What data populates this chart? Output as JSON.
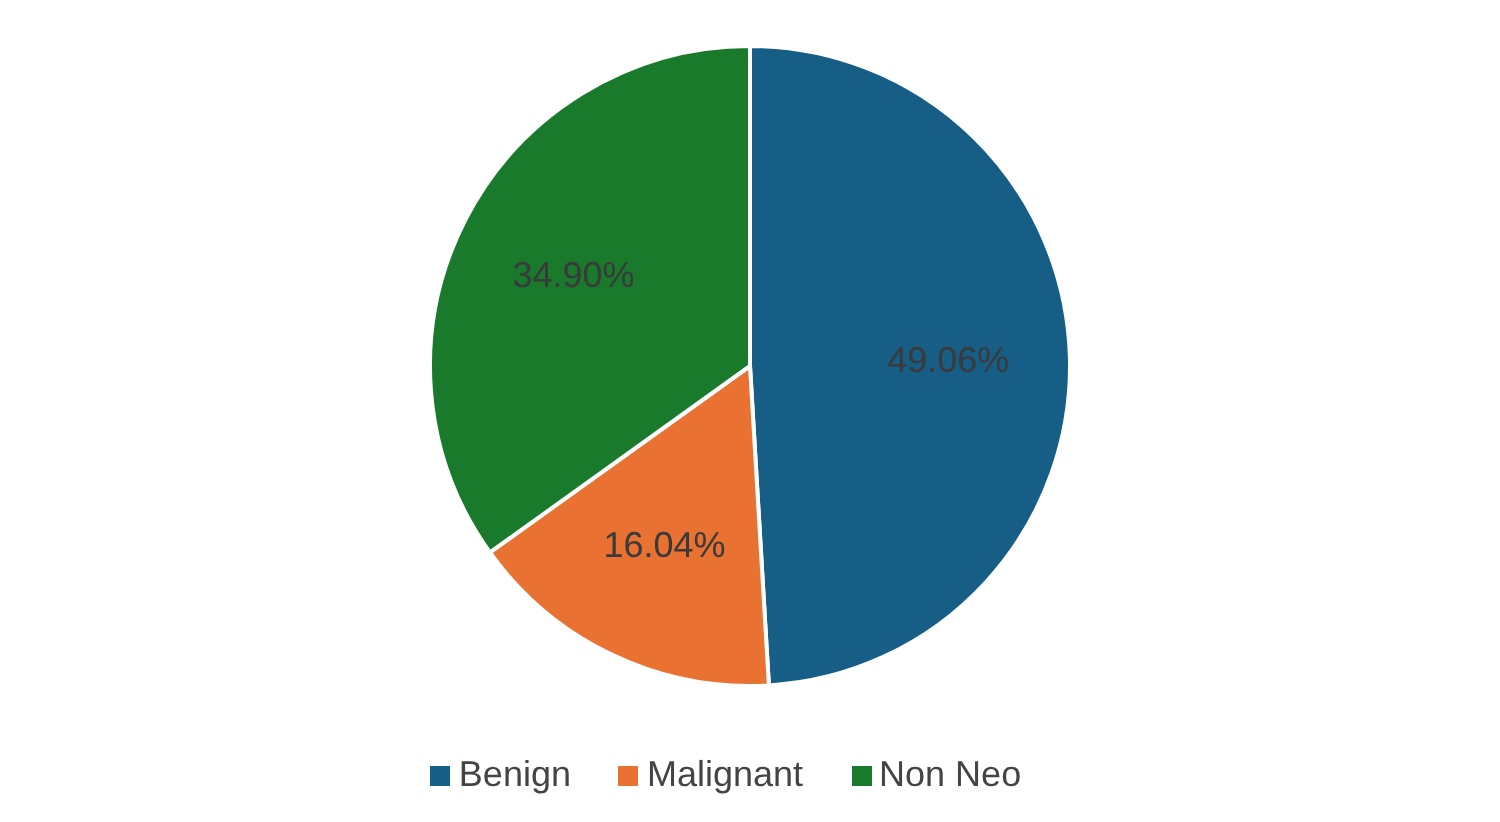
{
  "chart_data": {
    "type": "pie",
    "categories": [
      "Benign",
      "Malignant",
      "Non Neo"
    ],
    "values": [
      49.06,
      16.04,
      34.9
    ],
    "colors": [
      "#175e87",
      "#e97132",
      "#1a7a2c"
    ],
    "value_labels": [
      "49.06%",
      "16.04%",
      "34.90%"
    ],
    "legend": "bottom"
  }
}
